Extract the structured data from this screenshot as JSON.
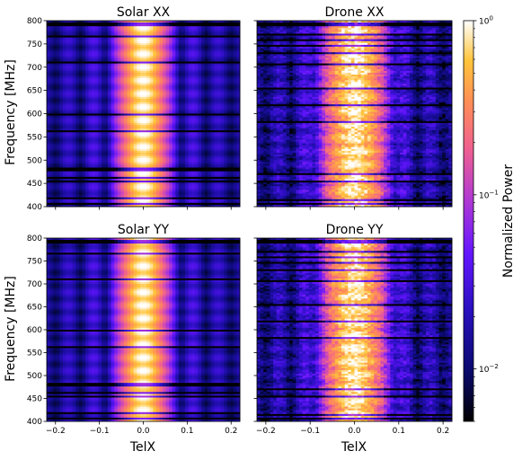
{
  "chart_data": {
    "type": "heatmap",
    "colormap": "gnuplot2",
    "panels": [
      {
        "title": "Solar XX",
        "source": "solar",
        "pol": "XX"
      },
      {
        "title": "Drone XX",
        "source": "drone",
        "pol": "XX"
      },
      {
        "title": "Solar YY",
        "source": "solar",
        "pol": "YY"
      },
      {
        "title": "Drone YY",
        "source": "drone",
        "pol": "YY"
      }
    ],
    "xlabel": "TelX",
    "ylabel": "Frequency [MHz]",
    "xlim": [
      -0.22,
      0.22
    ],
    "ylim": [
      400,
      800
    ],
    "xticks": [
      -0.2,
      -0.1,
      0.0,
      0.1,
      0.2
    ],
    "xtick_labels": [
      "−0.2",
      "−0.1",
      "0.0",
      "0.1",
      "0.2"
    ],
    "yticks": [
      400,
      450,
      500,
      550,
      600,
      650,
      700,
      750,
      800
    ],
    "yticks_labels": [
      "400",
      "450",
      "500",
      "550",
      "600",
      "650",
      "700",
      "750",
      "800"
    ],
    "colorbar": {
      "label": "Normalized Power",
      "scale": "log",
      "range": [
        0.005,
        1
      ],
      "ticks": [
        {
          "value": 0.01,
          "base": "10",
          "exp": "−2"
        },
        {
          "value": 0.1,
          "base": "10",
          "exp": "−1"
        },
        {
          "value": 1,
          "base": "10",
          "exp": "0"
        }
      ]
    },
    "beam_center": 0.0,
    "solar_beam_width": 0.025,
    "drone_beam_width": 0.032,
    "dark_freq_lines_solar": [
      407,
      412,
      419,
      428,
      455,
      462,
      478,
      481,
      488,
      520,
      528,
      540,
      548,
      563,
      597,
      604,
      612,
      620,
      660,
      668,
      710,
      716,
      720,
      760,
      765,
      790,
      795
    ],
    "dark_freq_lines_drone": [
      406,
      415,
      440,
      448,
      455,
      470,
      500,
      520,
      552,
      560,
      572,
      582,
      600,
      608,
      617,
      655,
      660,
      680,
      705,
      720,
      730,
      745,
      757,
      760,
      770,
      790,
      795
    ]
  }
}
